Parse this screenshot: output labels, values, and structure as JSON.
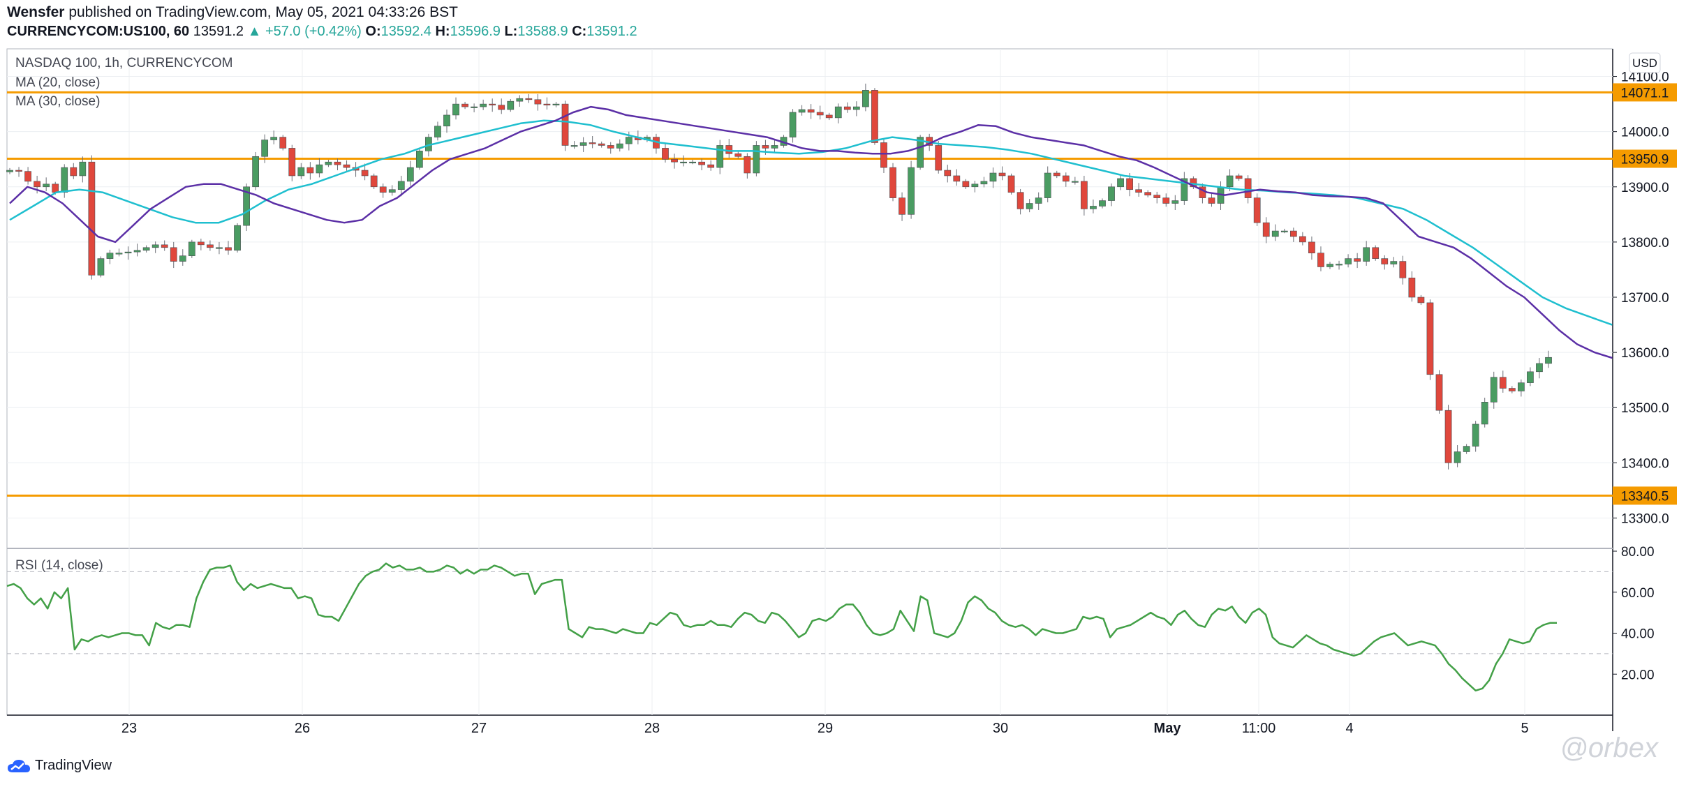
{
  "header": {
    "publisher": "Wensfer",
    "published_text": "published on TradingView.com, May 05, 2021 04:33:26 BST",
    "symbol": "CURRENCYCOM:US100, 60",
    "last": "13591.2",
    "change": "+57.0 (+0.42%)",
    "o_label": "O:",
    "o": "13592.4",
    "h_label": "H:",
    "h": "13596.9",
    "l_label": "L:",
    "l": "13588.9",
    "c_label": "C:",
    "c": "13591.2"
  },
  "legend": {
    "title": "NASDAQ 100, 1h, CURRENCYCOM",
    "ma20": "MA (20, close)",
    "ma30": "MA (30, close)",
    "rsi": "RSI (14, close)"
  },
  "currency": "USD",
  "footer": {
    "brand": "TradingView",
    "watermark": "@orbex"
  },
  "colors": {
    "up": "#4a9c62",
    "down": "#e0473c",
    "ma20": "#5b2fa6",
    "ma30": "#1fbfcf",
    "level": "#f59b00",
    "rsi": "#43a047",
    "grid": "#eceff2"
  },
  "chart_data": [
    {
      "type": "candlestick",
      "interval": "1h",
      "ylim": [
        13250,
        14150
      ],
      "y_ticks": [
        13300,
        13400,
        13500,
        13600,
        13700,
        13800,
        13900,
        14000,
        14100
      ],
      "x_labels": [
        "23",
        "26",
        "27",
        "28",
        "29",
        "30",
        "May",
        "11:00",
        "4",
        "5"
      ],
      "levels": [
        14071.1,
        13950.9,
        13340.5
      ],
      "last_price": 13591.2,
      "close": [
        13930,
        13928,
        13910,
        13900,
        13905,
        13890,
        13935,
        13920,
        13945,
        13740,
        13770,
        13780,
        13780,
        13782,
        13785,
        13790,
        13795,
        13790,
        13765,
        13775,
        13800,
        13795,
        13790,
        13790,
        13785,
        13830,
        13900,
        13955,
        13985,
        13990,
        13970,
        13920,
        13935,
        13925,
        13940,
        13945,
        13940,
        13935,
        13930,
        13920,
        13900,
        13890,
        13895,
        13910,
        13935,
        13965,
        13990,
        14010,
        14030,
        14050,
        14045,
        14045,
        14050,
        14048,
        14040,
        14055,
        14060,
        14058,
        14050,
        14048,
        14050,
        13975,
        13975,
        13980,
        13978,
        13975,
        13970,
        13978,
        13990,
        13985,
        13990,
        13970,
        13950,
        13945,
        13945,
        13945,
        13940,
        13935,
        13975,
        13960,
        13955,
        13925,
        13975,
        13970,
        13975,
        13990,
        14035,
        14040,
        14035,
        14030,
        14025,
        14045,
        14040,
        14045,
        14075,
        13980,
        13935,
        13880,
        13850,
        13935,
        13990,
        13975,
        13930,
        13920,
        13910,
        13900,
        13905,
        13910,
        13925,
        13920,
        13890,
        13860,
        13870,
        13880,
        13925,
        13920,
        13910,
        13910,
        13860,
        13865,
        13875,
        13900,
        13915,
        13895,
        13890,
        13885,
        13880,
        13870,
        13875,
        13915,
        13900,
        13880,
        13870,
        13900,
        13920,
        13915,
        13880,
        13835,
        13810,
        13820,
        13820,
        13810,
        13800,
        13780,
        13755,
        13760,
        13760,
        13770,
        13765,
        13790,
        13770,
        13760,
        13765,
        13735,
        13700,
        13690,
        13560,
        13495,
        13400,
        13420,
        13430,
        13470,
        13510,
        13555,
        13535,
        13530,
        13545,
        13565,
        13580,
        13591
      ],
      "ma20": [
        13870,
        13900,
        13890,
        13870,
        13840,
        13810,
        13800,
        13830,
        13860,
        13880,
        13900,
        13905,
        13905,
        13895,
        13885,
        13870,
        13860,
        13850,
        13840,
        13835,
        13840,
        13865,
        13880,
        13905,
        13930,
        13950,
        13960,
        13970,
        13985,
        14000,
        14010,
        14020,
        14035,
        14045,
        14040,
        14030,
        14025,
        14020,
        14015,
        14010,
        14005,
        14000,
        13995,
        13990,
        13980,
        13970,
        13965,
        13965,
        13962,
        13960,
        13960,
        13965,
        13975,
        13990,
        14000,
        14012,
        14010,
        13998,
        13990,
        13985,
        13980,
        13975,
        13965,
        13955,
        13948,
        13935,
        13920,
        13905,
        13890,
        13885,
        13890,
        13895,
        13892,
        13890,
        13885,
        13883,
        13882,
        13880,
        13870,
        13840,
        13810,
        13800,
        13790,
        13770,
        13745,
        13720,
        13700,
        13670,
        13640,
        13615,
        13600,
        13590
      ],
      "ma30": [
        13840,
        13865,
        13890,
        13895,
        13890,
        13875,
        13860,
        13845,
        13835,
        13835,
        13850,
        13875,
        13895,
        13905,
        13920,
        13935,
        13950,
        13960,
        13975,
        13985,
        13995,
        14005,
        14015,
        14020,
        14018,
        14012,
        14000,
        13990,
        13980,
        13975,
        13970,
        13965,
        13965,
        13962,
        13960,
        13963,
        13970,
        13982,
        13990,
        13985,
        13978,
        13975,
        13972,
        13967,
        13960,
        13950,
        13940,
        13930,
        13920,
        13915,
        13910,
        13905,
        13900,
        13895,
        13893,
        13890,
        13888,
        13885,
        13880,
        13870,
        13860,
        13840,
        13815,
        13790,
        13760,
        13730,
        13700,
        13680,
        13665,
        13650
      ],
      "ma20_x_range": [
        0,
        176
      ],
      "ma30_x_range": [
        0,
        176
      ]
    },
    {
      "type": "line",
      "name": "RSI (14, close)",
      "ylim": [
        0,
        80
      ],
      "y_ticks": [
        20,
        40,
        60,
        80
      ],
      "bands": [
        30,
        70
      ],
      "values": [
        63,
        64,
        62,
        57,
        54,
        57,
        52,
        60,
        57,
        62,
        32,
        37,
        36,
        38,
        39,
        38,
        39,
        40,
        40,
        39,
        39,
        34,
        45,
        43,
        42,
        44,
        44,
        43,
        57,
        65,
        71,
        72,
        72,
        73,
        65,
        61,
        64,
        62,
        63,
        64,
        63,
        62,
        62,
        57,
        58,
        57,
        49,
        48,
        48,
        46,
        52,
        58,
        64,
        68,
        70,
        71,
        74,
        72,
        73,
        71,
        71,
        72,
        70,
        70,
        71,
        73,
        72,
        69,
        71,
        69,
        71,
        71,
        73,
        72,
        70,
        68,
        69,
        69,
        59,
        64,
        65,
        66,
        66,
        42,
        40,
        38,
        43,
        42,
        42,
        41,
        40,
        42,
        41,
        40,
        40,
        45,
        44,
        47,
        50,
        49,
        44,
        43,
        44,
        44,
        46,
        44,
        44,
        43,
        47,
        50,
        49,
        46,
        45,
        50,
        49,
        46,
        42,
        38,
        40,
        46,
        47,
        46,
        48,
        52,
        54,
        54,
        50,
        44,
        40,
        39,
        40,
        42,
        51,
        46,
        41,
        58,
        56,
        40,
        39,
        38,
        40,
        46,
        55,
        58,
        56,
        52,
        50,
        46,
        44,
        43,
        44,
        42,
        39,
        42,
        41,
        40,
        40,
        41,
        42,
        48,
        47,
        48,
        47,
        38,
        42,
        43,
        44,
        46,
        48,
        50,
        48,
        47,
        44,
        49,
        51,
        47,
        44,
        43,
        49,
        52,
        51,
        53,
        48,
        45,
        50,
        52,
        49,
        38,
        35,
        34,
        33,
        36,
        39,
        37,
        35,
        34,
        32,
        31,
        30,
        29,
        30,
        33,
        36,
        38,
        39,
        40,
        37,
        34,
        35,
        36,
        35,
        34,
        30,
        25,
        22,
        18,
        15,
        12,
        13,
        17,
        25,
        30,
        37,
        36,
        35,
        36,
        42,
        44,
        45,
        45
      ]
    }
  ]
}
